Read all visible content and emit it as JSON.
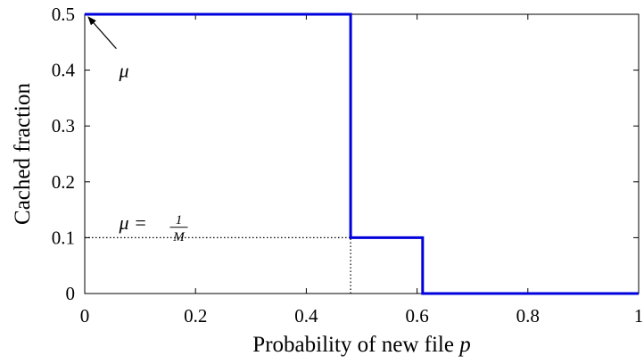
{
  "chart_data": {
    "type": "line",
    "xlabel_text": "Probability of new file",
    "xlabel_var": "p",
    "ylabel": "Cached fraction",
    "xlim": [
      0,
      1
    ],
    "ylim": [
      0,
      0.5
    ],
    "x_ticks": [
      0,
      0.2,
      0.4,
      0.6,
      0.8,
      1
    ],
    "x_tick_labels": [
      "0",
      "0.2",
      "0.4",
      "0.6",
      "0.8",
      "1"
    ],
    "y_ticks": [
      0,
      0.1,
      0.2,
      0.3,
      0.4,
      0.5
    ],
    "y_tick_labels": [
      "0",
      "0.1",
      "0.2",
      "0.3",
      "0.4",
      "0.5"
    ],
    "grid": false,
    "series": [
      {
        "color": "#0000dd",
        "x": [
          0,
          0.48,
          0.48,
          0.61,
          0.61,
          1
        ],
        "y": [
          0.5,
          0.5,
          0.1,
          0.1,
          0,
          0
        ]
      }
    ],
    "reference_lines": [
      {
        "style": "dotted",
        "x": [
          0,
          0.48
        ],
        "y": [
          0.1,
          0.1
        ]
      },
      {
        "style": "dotted",
        "x": [
          0.48,
          0.48
        ],
        "y": [
          0,
          0.1
        ]
      }
    ],
    "annotations": [
      {
        "text": "μ",
        "x": 0.07,
        "y": 0.4,
        "arrow_to": [
          0,
          0.5
        ]
      },
      {
        "text": "μ =",
        "fraction_numerator": "1",
        "fraction_denominator": "M",
        "x": 0.07,
        "y": 0.125
      }
    ]
  }
}
